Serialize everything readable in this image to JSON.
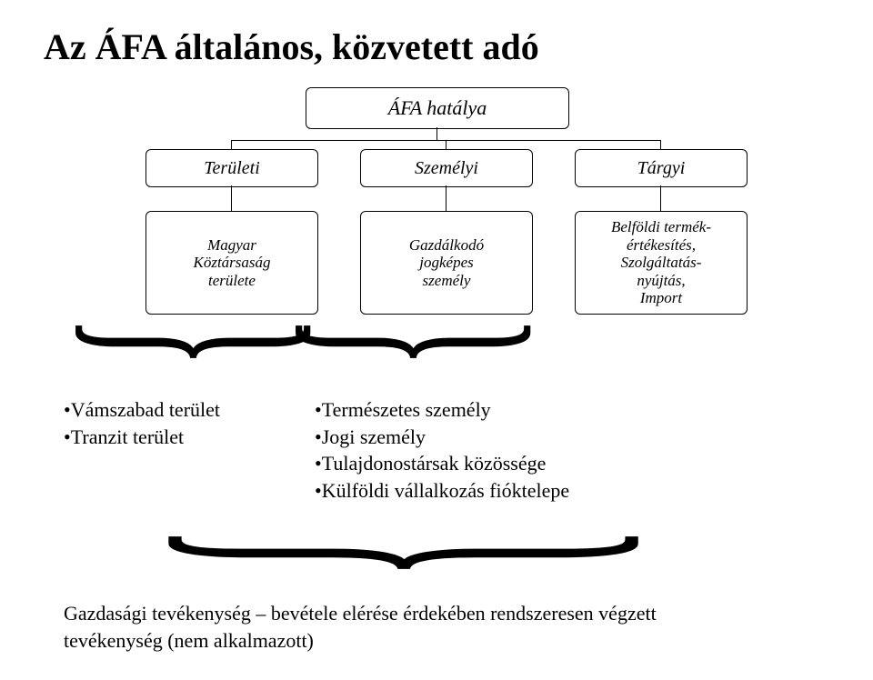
{
  "title": "Az ÁFA általános, közvetett adó",
  "root": "ÁFA hatálya",
  "level2": {
    "a": "Területi",
    "b": "Személyi",
    "c": "Tárgyi"
  },
  "level3": {
    "a": "Magyar\nKöztársaság\nterülete",
    "b": "Gazdálkodó\njogképes\nszemély",
    "c": "Belföldi termék-\nértékesítés,\nSzolgáltatás-\nnyújtás,\nImport"
  },
  "bulletsA": [
    "Vámszabad terület",
    "Tranzit terület"
  ],
  "bulletsB": [
    "Természetes személy",
    "Jogi személy",
    "Tulajdonostársak közössége",
    "Külföldi vállalkozás fióktelepe"
  ],
  "bottom1": "Gazdasági tevékenység – bevétele elérése érdekében rendszeresen végzett",
  "bottom2": "tevékenység (nem alkalmazott)",
  "colors": {
    "line": "#000000",
    "text": "#000000",
    "bg": "#ffffff"
  },
  "fonts": {
    "title_size": 40,
    "box_size": 20,
    "body_size": 22,
    "family": "Times New Roman"
  },
  "brace_char": "}"
}
